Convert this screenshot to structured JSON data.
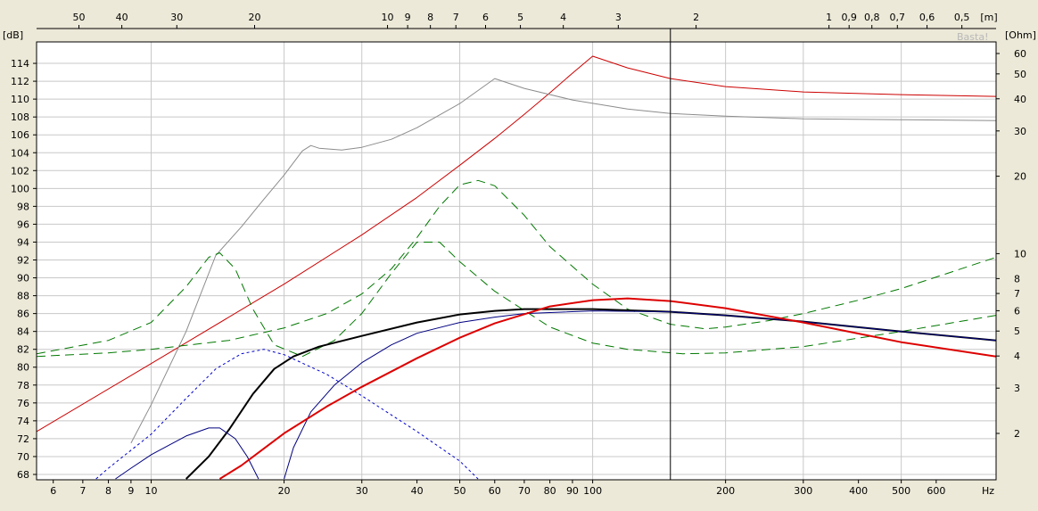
{
  "chart_data": {
    "type": "line",
    "title": "",
    "xlabel": "",
    "ylabel": "",
    "x_unit": "Hz",
    "y_unit": "[dB]",
    "y2_unit": "[Ohm]",
    "top_unit": "[m]",
    "watermark": "Basta!",
    "x_scale": "log",
    "xlim": [
      5.5,
      820
    ],
    "ylim": [
      67.4,
      116.4
    ],
    "y2_scale": "log",
    "y2_ticks": [
      {
        "value": 60,
        "label": "60"
      },
      {
        "value": 50,
        "label": "50"
      },
      {
        "value": 40,
        "label": "40"
      },
      {
        "value": 30,
        "label": "30"
      },
      {
        "value": 20,
        "label": "20"
      },
      {
        "value": 10,
        "label": "10"
      },
      {
        "value": 8,
        "label": "8"
      },
      {
        "value": 7,
        "label": "7"
      },
      {
        "value": 6,
        "label": "6"
      },
      {
        "value": 5,
        "label": "5"
      },
      {
        "value": 4,
        "label": "4"
      },
      {
        "value": 3,
        "label": "3"
      },
      {
        "value": 2,
        "label": "2"
      }
    ],
    "y_ticks": [
      68,
      70,
      72,
      74,
      76,
      78,
      80,
      82,
      84,
      86,
      88,
      90,
      92,
      94,
      96,
      98,
      100,
      102,
      104,
      106,
      108,
      110,
      112,
      114
    ],
    "x_ticks": [
      {
        "value": 6,
        "label": "6"
      },
      {
        "value": 7,
        "label": "7"
      },
      {
        "value": 8,
        "label": "8"
      },
      {
        "value": 9,
        "label": "9"
      },
      {
        "value": 10,
        "label": "10"
      },
      {
        "value": 20,
        "label": "20"
      },
      {
        "value": 30,
        "label": "30"
      },
      {
        "value": 40,
        "label": "40"
      },
      {
        "value": 50,
        "label": "50"
      },
      {
        "value": 60,
        "label": "60"
      },
      {
        "value": 70,
        "label": "70"
      },
      {
        "value": 80,
        "label": "80"
      },
      {
        "value": 90,
        "label": "90"
      },
      {
        "value": 100,
        "label": "100"
      },
      {
        "value": 200,
        "label": "200"
      },
      {
        "value": 300,
        "label": "300"
      },
      {
        "value": 400,
        "label": "400"
      },
      {
        "value": 500,
        "label": "500"
      },
      {
        "value": 600,
        "label": "600"
      }
    ],
    "x_grid_major": [
      10,
      20,
      30,
      50,
      100,
      200,
      300,
      500
    ],
    "top_ticks": [
      {
        "label": "50",
        "hz": 6.86
      },
      {
        "label": "40",
        "hz": 8.58
      },
      {
        "label": "30",
        "hz": 11.43
      },
      {
        "label": "20",
        "hz": 17.15
      },
      {
        "label": "10",
        "hz": 34.3
      },
      {
        "label": "9",
        "hz": 38.1
      },
      {
        "label": "8",
        "hz": 42.9
      },
      {
        "label": "7",
        "hz": 49.0
      },
      {
        "label": "6",
        "hz": 57.2
      },
      {
        "label": "5",
        "hz": 68.6
      },
      {
        "label": "4",
        "hz": 85.8
      },
      {
        "label": "3",
        "hz": 114.3
      },
      {
        "label": "2",
        "hz": 171.5
      },
      {
        "label": "1",
        "hz": 343
      },
      {
        "label": "0,9",
        "hz": 381
      },
      {
        "label": "0,8",
        "hz": 429
      },
      {
        "label": "0,7",
        "hz": 490
      },
      {
        "label": "0,6",
        "hz": 572
      },
      {
        "label": "0,5",
        "hz": 686
      }
    ],
    "cursor_hz": 150,
    "series": [
      {
        "color": "#cc0000",
        "width": 1,
        "dash": "",
        "points": [
          [
            5.5,
            72.8
          ],
          [
            10,
            80.4
          ],
          [
            20,
            89.3
          ],
          [
            30,
            94.8
          ],
          [
            40,
            99.0
          ],
          [
            50,
            102.6
          ],
          [
            60,
            105.6
          ],
          [
            70,
            108.3
          ],
          [
            80,
            110.7
          ],
          [
            90,
            112.9
          ],
          [
            100,
            114.8
          ],
          [
            120,
            113.5
          ],
          [
            150,
            112.3
          ],
          [
            200,
            111.4
          ],
          [
            300,
            110.8
          ],
          [
            500,
            110.5
          ],
          [
            820,
            110.3
          ]
        ]
      },
      {
        "color": "#8c8c8c",
        "width": 1,
        "dash": "",
        "points": [
          [
            9,
            71.5
          ],
          [
            10,
            75.8
          ],
          [
            12,
            84.0
          ],
          [
            14,
            92.5
          ],
          [
            16,
            95.7
          ],
          [
            18,
            98.8
          ],
          [
            20,
            101.5
          ],
          [
            22,
            104.2
          ],
          [
            23,
            104.8
          ],
          [
            24,
            104.5
          ],
          [
            27,
            104.3
          ],
          [
            30,
            104.6
          ],
          [
            35,
            105.5
          ],
          [
            40,
            106.8
          ],
          [
            50,
            109.5
          ],
          [
            60,
            112.3
          ],
          [
            70,
            111.2
          ],
          [
            90,
            109.9
          ],
          [
            120,
            108.9
          ],
          [
            150,
            108.4
          ],
          [
            200,
            108.1
          ],
          [
            300,
            107.8
          ],
          [
            500,
            107.7
          ],
          [
            820,
            107.6
          ]
        ]
      },
      {
        "color": "#007800",
        "width": 1,
        "dash": "10,6",
        "points": [
          [
            5.5,
            81.5
          ],
          [
            8,
            83.0
          ],
          [
            10,
            85.0
          ],
          [
            12,
            89.0
          ],
          [
            13.5,
            92.3
          ],
          [
            14.3,
            92.8
          ],
          [
            15.5,
            91.0
          ],
          [
            17,
            86.5
          ],
          [
            19,
            82.5
          ],
          [
            22,
            81.2
          ],
          [
            26,
            83.0
          ],
          [
            30,
            86.0
          ],
          [
            35,
            90.5
          ],
          [
            40,
            94.0
          ],
          [
            45,
            94.0
          ],
          [
            50,
            91.8
          ],
          [
            60,
            88.5
          ],
          [
            80,
            84.5
          ],
          [
            100,
            82.7
          ],
          [
            120,
            82.0
          ],
          [
            160,
            81.5
          ],
          [
            200,
            81.6
          ],
          [
            300,
            82.3
          ],
          [
            500,
            84.0
          ],
          [
            820,
            85.8
          ]
        ]
      },
      {
        "color": "#007800",
        "width": 1,
        "dash": "10,6",
        "points": [
          [
            5.5,
            81.2
          ],
          [
            8,
            81.6
          ],
          [
            10,
            82.0
          ],
          [
            15,
            83.0
          ],
          [
            20,
            84.4
          ],
          [
            25,
            86.0
          ],
          [
            30,
            88.2
          ],
          [
            35,
            91.0
          ],
          [
            40,
            94.5
          ],
          [
            45,
            98.0
          ],
          [
            50,
            100.4
          ],
          [
            55,
            100.9
          ],
          [
            60,
            100.3
          ],
          [
            70,
            97.0
          ],
          [
            80,
            93.5
          ],
          [
            100,
            89.3
          ],
          [
            120,
            86.5
          ],
          [
            150,
            84.8
          ],
          [
            180,
            84.3
          ],
          [
            200,
            84.5
          ],
          [
            250,
            85.2
          ],
          [
            300,
            86.0
          ],
          [
            400,
            87.5
          ],
          [
            500,
            88.8
          ],
          [
            820,
            92.3
          ]
        ]
      },
      {
        "color": "#000000",
        "width": 2,
        "dash": "",
        "points": [
          [
            12,
            67.5
          ],
          [
            13.5,
            70.0
          ],
          [
            15,
            73.0
          ],
          [
            17,
            77.0
          ],
          [
            19,
            79.8
          ],
          [
            21,
            81.2
          ],
          [
            24,
            82.3
          ],
          [
            30,
            83.5
          ],
          [
            40,
            85.0
          ],
          [
            50,
            85.9
          ],
          [
            60,
            86.3
          ],
          [
            70,
            86.5
          ],
          [
            100,
            86.5
          ],
          [
            150,
            86.2
          ],
          [
            200,
            85.8
          ],
          [
            300,
            85.1
          ],
          [
            500,
            84.0
          ],
          [
            820,
            83.0
          ]
        ]
      },
      {
        "color": "#000080",
        "width": 1,
        "dash": "",
        "points": [
          [
            8.3,
            67.5
          ],
          [
            9,
            68.7
          ],
          [
            10,
            70.2
          ],
          [
            12,
            72.3
          ],
          [
            13.5,
            73.2
          ],
          [
            14.3,
            73.2
          ],
          [
            15.5,
            72.0
          ],
          [
            16.5,
            70.0
          ],
          [
            17.5,
            67.5
          ]
        ]
      },
      {
        "color": "#000080",
        "width": 1,
        "dash": "",
        "points": [
          [
            20,
            67.5
          ],
          [
            21,
            71.0
          ],
          [
            23,
            75.0
          ],
          [
            26,
            78.0
          ],
          [
            30,
            80.5
          ],
          [
            35,
            82.5
          ],
          [
            40,
            83.8
          ],
          [
            50,
            85.0
          ],
          [
            60,
            85.6
          ],
          [
            70,
            86.0
          ],
          [
            100,
            86.3
          ],
          [
            150,
            86.2
          ],
          [
            200,
            85.8
          ],
          [
            300,
            85.1
          ],
          [
            500,
            84.0
          ],
          [
            820,
            83.0
          ]
        ]
      },
      {
        "color": "#0000cc",
        "width": 1,
        "dash": "3,3",
        "points": [
          [
            7.5,
            67.5
          ],
          [
            8,
            68.7
          ],
          [
            10,
            72.5
          ],
          [
            12,
            76.5
          ],
          [
            14,
            79.8
          ],
          [
            16,
            81.5
          ],
          [
            18,
            82.0
          ],
          [
            20,
            81.4
          ],
          [
            25,
            79.2
          ],
          [
            30,
            76.8
          ],
          [
            40,
            72.8
          ],
          [
            50,
            69.5
          ],
          [
            55,
            67.5
          ]
        ]
      },
      {
        "color": "#dd0000",
        "width": 2,
        "dash": "",
        "points": [
          [
            14.3,
            67.5
          ],
          [
            16,
            69.0
          ],
          [
            20,
            72.6
          ],
          [
            25,
            75.6
          ],
          [
            30,
            77.8
          ],
          [
            40,
            81.0
          ],
          [
            50,
            83.3
          ],
          [
            60,
            84.9
          ],
          [
            80,
            86.8
          ],
          [
            100,
            87.5
          ],
          [
            120,
            87.7
          ],
          [
            150,
            87.4
          ],
          [
            200,
            86.6
          ],
          [
            300,
            85.0
          ],
          [
            500,
            82.8
          ],
          [
            820,
            81.2
          ]
        ]
      }
    ]
  }
}
